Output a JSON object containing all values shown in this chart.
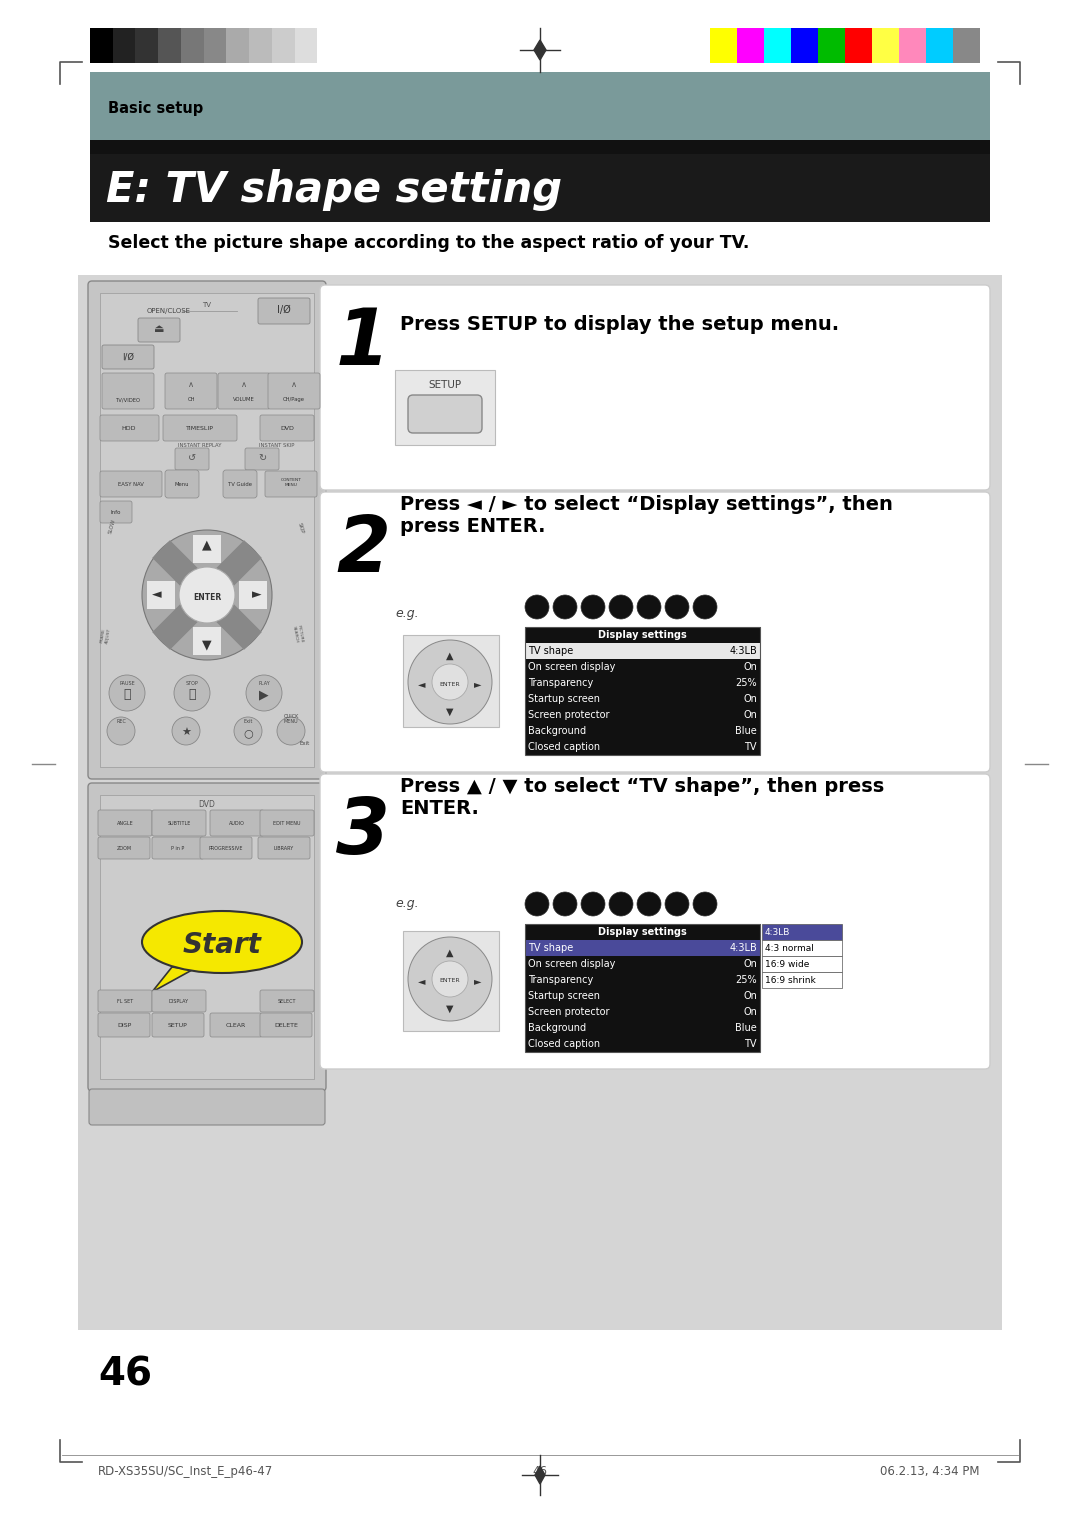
{
  "page_bg": "#ffffff",
  "header_bar_color": "#7a9a9a",
  "title_bg": "#1a1a1a",
  "title_text": "E: TV shape setting",
  "title_color": "#ffffff",
  "basic_setup_text": "Basic setup",
  "subtitle_text": "Select the picture shape according to the aspect ratio of your TV.",
  "step1_text": "Press SETUP to display the setup menu.",
  "step2_text": "Press ◄ / ► to select “Display settings”, then\npress ENTER.",
  "step3_text": "Press ▲ / ▼ to select “TV shape”, then press\nENTER.",
  "page_number": "46",
  "footer_left": "RD-XS35SU/SC_Inst_E_p46-47",
  "footer_center": "46",
  "footer_right": "06.2.13, 4:34 PM",
  "display_settings_rows": [
    [
      "TV shape",
      "4:3LB"
    ],
    [
      "On screen display",
      "On"
    ],
    [
      "Transparency",
      "25%"
    ],
    [
      "Startup screen",
      "On"
    ],
    [
      "Screen protector",
      "On"
    ],
    [
      "Background",
      "Blue"
    ],
    [
      "Closed caption",
      "TV"
    ]
  ],
  "popup_rows": [
    "4:3LB",
    "4:3 normal",
    "16:9 wide",
    "16:9 shrink"
  ],
  "grayscale_colors": [
    "#000000",
    "#222222",
    "#333333",
    "#555555",
    "#777777",
    "#888888",
    "#aaaaaa",
    "#bbbbbb",
    "#cccccc",
    "#dddddd",
    "#ffffff"
  ],
  "color_bars": [
    "#ffff00",
    "#ff00ff",
    "#00ffff",
    "#0000ff",
    "#00bb00",
    "#ff0000",
    "#ffff44",
    "#ff88bb",
    "#00ccff",
    "#888888"
  ]
}
